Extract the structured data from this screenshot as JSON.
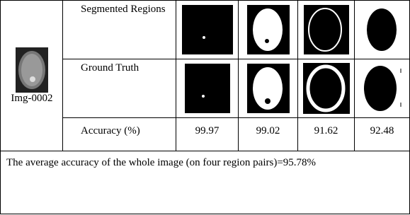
{
  "table": {
    "image_label": "Img-0002",
    "rows": [
      {
        "label": "Segmented Regions"
      },
      {
        "label": "Ground Truth"
      },
      {
        "label": "Accuracy (%)",
        "values": [
          99.97,
          99.02,
          91.62,
          92.48
        ]
      }
    ],
    "footer": "The average accuracy of the whole image (on four region pairs)=95.78%"
  }
}
